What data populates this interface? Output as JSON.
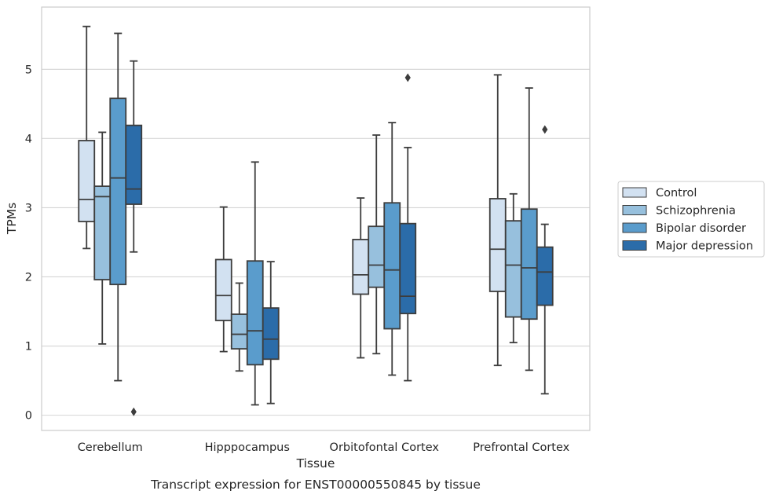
{
  "caption": "Transcript expression for ENST00000550845 by tissue",
  "chart_data": {
    "type": "box",
    "xlabel": "Tissue",
    "ylabel": "TPMs",
    "ylim": [
      -0.22,
      5.9
    ],
    "yticks": [
      0,
      1,
      2,
      3,
      4,
      5
    ],
    "grid": "horizontal",
    "legend_position": "right",
    "categories": [
      "Cerebellum",
      "Hipppocampus",
      "Orbitofontal Cortex",
      "Prefrontal Cortex"
    ],
    "series": [
      {
        "name": "Control",
        "color": "#d2e1f1",
        "boxes": [
          {
            "whisker_low": 2.41,
            "q1": 2.8,
            "median": 3.12,
            "q3": 3.97,
            "whisker_high": 5.62,
            "outliers": []
          },
          {
            "whisker_low": 0.92,
            "q1": 1.37,
            "median": 1.73,
            "q3": 2.25,
            "whisker_high": 3.01,
            "outliers": []
          },
          {
            "whisker_low": 0.83,
            "q1": 1.75,
            "median": 2.03,
            "q3": 2.54,
            "whisker_high": 3.14,
            "outliers": []
          },
          {
            "whisker_low": 0.72,
            "q1": 1.79,
            "median": 2.4,
            "q3": 3.13,
            "whisker_high": 4.92,
            "outliers": []
          }
        ]
      },
      {
        "name": "Schizophrenia",
        "color": "#97c0dd",
        "boxes": [
          {
            "whisker_low": 1.03,
            "q1": 1.96,
            "median": 3.16,
            "q3": 3.31,
            "whisker_high": 4.09,
            "outliers": []
          },
          {
            "whisker_low": 0.64,
            "q1": 0.96,
            "median": 1.17,
            "q3": 1.46,
            "whisker_high": 1.91,
            "outliers": []
          },
          {
            "whisker_low": 0.89,
            "q1": 1.85,
            "median": 2.17,
            "q3": 2.73,
            "whisker_high": 4.05,
            "outliers": []
          },
          {
            "whisker_low": 1.05,
            "q1": 1.42,
            "median": 2.17,
            "q3": 2.81,
            "whisker_high": 3.2,
            "outliers": []
          }
        ]
      },
      {
        "name": "Bipolar disorder",
        "color": "#5a9ccc",
        "boxes": [
          {
            "whisker_low": 0.5,
            "q1": 1.89,
            "median": 3.43,
            "q3": 4.58,
            "whisker_high": 5.52,
            "outliers": []
          },
          {
            "whisker_low": 0.15,
            "q1": 0.73,
            "median": 1.22,
            "q3": 2.23,
            "whisker_high": 3.66,
            "outliers": []
          },
          {
            "whisker_low": 0.58,
            "q1": 1.25,
            "median": 2.1,
            "q3": 3.07,
            "whisker_high": 4.23,
            "outliers": []
          },
          {
            "whisker_low": 0.65,
            "q1": 1.39,
            "median": 2.13,
            "q3": 2.98,
            "whisker_high": 4.73,
            "outliers": []
          }
        ]
      },
      {
        "name": "Major depression",
        "color": "#2b6ca9",
        "boxes": [
          {
            "whisker_low": 2.36,
            "q1": 3.05,
            "median": 3.27,
            "q3": 4.19,
            "whisker_high": 5.12,
            "outliers": [
              0.05
            ]
          },
          {
            "whisker_low": 0.17,
            "q1": 0.81,
            "median": 1.1,
            "q3": 1.55,
            "whisker_high": 2.22,
            "outliers": []
          },
          {
            "whisker_low": 0.5,
            "q1": 1.47,
            "median": 1.72,
            "q3": 2.77,
            "whisker_high": 3.87,
            "outliers": [
              4.88
            ]
          },
          {
            "whisker_low": 0.31,
            "q1": 1.59,
            "median": 2.07,
            "q3": 2.43,
            "whisker_high": 2.76,
            "outliers": [
              4.13
            ]
          }
        ]
      }
    ]
  }
}
